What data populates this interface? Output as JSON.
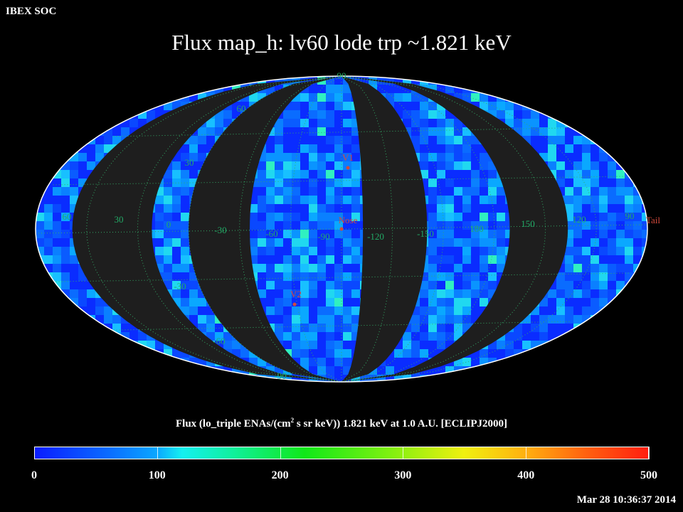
{
  "header": {
    "org": "IBEX SOC",
    "title": "Flux   map_h: lv60 lode trp ~1.821 keV"
  },
  "map": {
    "type": "Mollweide all-sky map",
    "colormap_min": 0,
    "colormap_max": 500,
    "lat_labels_left": [
      "90",
      "60",
      "30",
      "0",
      "-30",
      "-60",
      "-90"
    ],
    "lon_labels": [
      "60",
      "30",
      "0",
      "-30",
      "-60",
      "-90",
      "-120",
      "-150",
      "180",
      "150",
      "120",
      "90"
    ],
    "markers": {
      "v1": "V1",
      "nose": "Nose",
      "v2": "V2",
      "tail": "Tail"
    },
    "colors": {
      "background": "#000000",
      "unobserved": "#1e1e1e",
      "grid": "#33aa66",
      "marker": "#d24a3c"
    }
  },
  "colorbar": {
    "label_pre": "Flux (lo_triple ENAs/(cm",
    "label_sup": "2",
    "label_post": " s sr keV))  1.821 keV at 1.0 A.U. [ECLIPJ2000]",
    "ticks": [
      "0",
      "100",
      "200",
      "300",
      "400",
      "500"
    ]
  },
  "footer": {
    "timestamp": "Mar 28 10:36:37 2014"
  }
}
